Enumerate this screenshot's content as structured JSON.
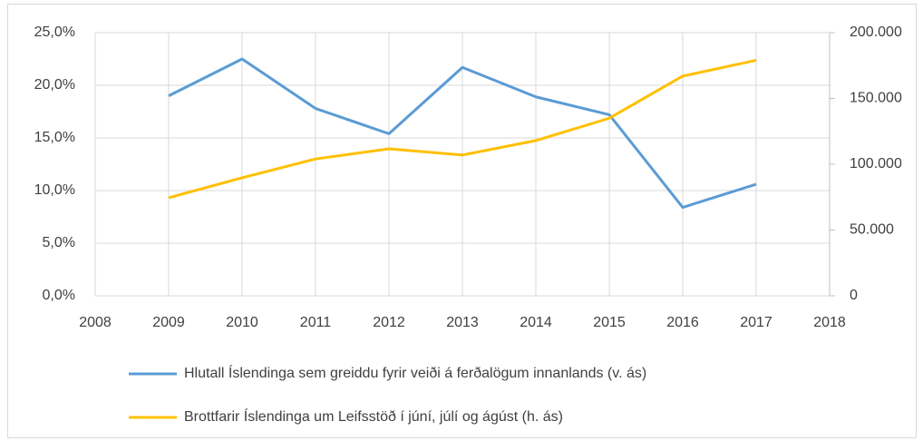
{
  "chart_data": {
    "type": "line",
    "x": [
      2009,
      2010,
      2011,
      2012,
      2013,
      2014,
      2015,
      2016,
      2017
    ],
    "series": [
      {
        "name": "Hlutall Íslendinga sem greiddu fyrir veiði á ferðalögum innanlands (v. ás)",
        "color": "#5b9bd5",
        "axis": "y",
        "values": [
          19.0,
          22.5,
          17.8,
          15.4,
          21.7,
          18.9,
          17.2,
          8.4,
          10.6
        ]
      },
      {
        "name": "Brottfarir Íslendinga um Leifsstöð í júní, júlí og ágúst (h. ás)",
        "color": "#ffc000",
        "axis": "y2",
        "values": [
          74500,
          89700,
          104000,
          111700,
          107000,
          118000,
          135000,
          167000,
          179000
        ]
      }
    ],
    "xlim": [
      2008,
      2018
    ],
    "xticks": [
      2008,
      2009,
      2010,
      2011,
      2012,
      2013,
      2014,
      2015,
      2016,
      2017,
      2018
    ],
    "ylim": [
      0,
      25
    ],
    "yticks": [
      {
        "value": 0,
        "label": "0,0%"
      },
      {
        "value": 5,
        "label": "5,0%"
      },
      {
        "value": 10,
        "label": "10,0%"
      },
      {
        "value": 15,
        "label": "15,0%"
      },
      {
        "value": 20,
        "label": "20,0%"
      },
      {
        "value": 25,
        "label": "25,0%"
      }
    ],
    "y2lim": [
      0,
      200000
    ],
    "y2ticks": [
      0,
      {
        "value": 50000,
        "label": "50.000"
      },
      {
        "value": 100000,
        "label": "100.000"
      },
      {
        "value": 150000,
        "label": "150.000"
      },
      {
        "value": 200000,
        "label": "200.000"
      }
    ],
    "grid": true,
    "legend": "bottom"
  }
}
